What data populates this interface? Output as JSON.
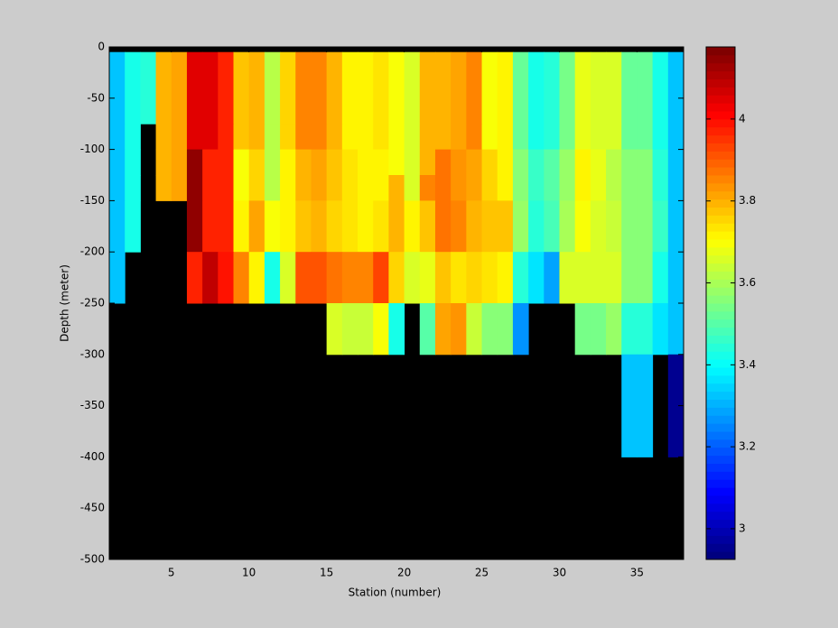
{
  "chart_data": {
    "type": "heatmap",
    "x_label": "Station (number)",
    "y_label": "Depth (meter)",
    "colormap": "jet",
    "missing_color": "#000000",
    "x": [
      1,
      2,
      3,
      4,
      5,
      6,
      7,
      8,
      9,
      10,
      11,
      12,
      13,
      14,
      15,
      16,
      17,
      18,
      19,
      20,
      21,
      22,
      23,
      24,
      25,
      26,
      27,
      28,
      29,
      30,
      31,
      32,
      33,
      34,
      35,
      36,
      37,
      38
    ],
    "y": [
      0,
      -5,
      -75,
      -100,
      -125,
      -150,
      -200,
      -250,
      -300,
      -400,
      -500
    ],
    "z": [
      [
        null,
        null,
        null,
        null,
        null,
        null,
        null,
        null,
        null,
        null,
        null,
        null,
        null,
        null,
        null,
        null,
        null,
        null,
        null,
        null,
        null,
        null,
        null,
        null,
        null,
        null,
        null,
        null,
        null,
        null,
        null,
        null,
        null,
        null,
        null,
        null,
        null
      ],
      [
        3.33,
        3.42,
        3.45,
        3.8,
        3.82,
        4.05,
        4.05,
        3.97,
        3.78,
        3.8,
        3.62,
        3.75,
        3.85,
        3.85,
        3.8,
        3.72,
        3.72,
        3.74,
        3.7,
        3.66,
        3.8,
        3.8,
        3.82,
        3.85,
        3.7,
        3.72,
        3.52,
        3.42,
        3.45,
        3.55,
        3.68,
        3.65,
        3.66,
        3.52,
        3.53,
        3.42,
        3.32
      ],
      [
        3.33,
        3.42,
        null,
        3.8,
        3.82,
        4.05,
        4.05,
        3.97,
        3.78,
        3.8,
        3.62,
        3.75,
        3.85,
        3.85,
        3.8,
        3.72,
        3.72,
        3.74,
        3.7,
        3.66,
        3.8,
        3.8,
        3.82,
        3.85,
        3.7,
        3.72,
        3.52,
        3.42,
        3.45,
        3.55,
        3.68,
        3.65,
        3.66,
        3.52,
        3.53,
        3.42,
        3.32
      ],
      [
        3.33,
        3.42,
        null,
        3.8,
        3.82,
        4.15,
        3.98,
        3.97,
        3.7,
        3.75,
        3.62,
        3.72,
        3.8,
        3.82,
        3.78,
        3.74,
        3.72,
        3.72,
        3.7,
        3.66,
        3.8,
        3.88,
        3.84,
        3.82,
        3.75,
        3.72,
        3.57,
        3.46,
        3.5,
        3.58,
        3.72,
        3.68,
        3.62,
        3.56,
        3.56,
        3.44,
        3.32
      ],
      [
        3.33,
        3.42,
        null,
        3.8,
        3.82,
        4.15,
        3.98,
        3.97,
        3.7,
        3.75,
        3.62,
        3.72,
        3.8,
        3.82,
        3.78,
        3.74,
        3.72,
        3.72,
        3.8,
        3.66,
        3.86,
        3.88,
        3.84,
        3.82,
        3.75,
        3.72,
        3.57,
        3.46,
        3.5,
        3.58,
        3.72,
        3.68,
        3.62,
        3.56,
        3.56,
        3.44,
        3.32
      ],
      [
        3.33,
        3.42,
        null,
        null,
        null,
        4.15,
        3.98,
        3.97,
        3.72,
        3.82,
        3.7,
        3.72,
        3.78,
        3.8,
        3.76,
        3.74,
        3.72,
        3.74,
        3.8,
        3.72,
        3.78,
        3.88,
        3.86,
        3.8,
        3.78,
        3.78,
        3.58,
        3.44,
        3.48,
        3.6,
        3.7,
        3.66,
        3.64,
        3.56,
        3.56,
        3.46,
        3.32
      ],
      [
        3.33,
        null,
        null,
        null,
        null,
        3.98,
        4.08,
        4.0,
        3.85,
        3.72,
        3.42,
        3.65,
        3.92,
        3.92,
        3.88,
        3.86,
        3.86,
        3.94,
        3.75,
        3.66,
        3.68,
        3.78,
        3.74,
        3.76,
        3.74,
        3.72,
        3.45,
        3.36,
        3.28,
        3.66,
        3.66,
        3.66,
        3.66,
        3.56,
        3.56,
        3.42,
        3.32
      ],
      [
        null,
        null,
        null,
        null,
        null,
        null,
        null,
        null,
        null,
        null,
        null,
        null,
        null,
        null,
        3.66,
        3.64,
        3.64,
        3.7,
        3.42,
        null,
        3.5,
        3.82,
        3.84,
        3.64,
        3.56,
        3.57,
        3.27,
        null,
        null,
        null,
        3.54,
        3.55,
        3.58,
        3.44,
        3.44,
        3.36,
        3.32
      ],
      [
        null,
        null,
        null,
        null,
        null,
        null,
        null,
        null,
        null,
        null,
        null,
        null,
        null,
        null,
        null,
        null,
        null,
        null,
        null,
        null,
        null,
        null,
        null,
        null,
        null,
        null,
        null,
        null,
        null,
        null,
        null,
        null,
        null,
        3.32,
        3.32,
        null,
        2.95
      ],
      [
        null,
        null,
        null,
        null,
        null,
        null,
        null,
        null,
        null,
        null,
        null,
        null,
        null,
        null,
        null,
        null,
        null,
        null,
        null,
        null,
        null,
        null,
        null,
        null,
        null,
        null,
        null,
        null,
        null,
        null,
        null,
        null,
        null,
        null,
        null,
        null,
        null
      ]
    ],
    "xlim": [
      1,
      38
    ],
    "xticks": [
      5,
      10,
      15,
      20,
      25,
      30,
      35
    ],
    "ylim": [
      -500,
      0
    ],
    "yticks": [
      0,
      -50,
      -100,
      -150,
      -200,
      -250,
      -300,
      -350,
      -400,
      -450,
      -500
    ],
    "clim": [
      2.925,
      4.176
    ],
    "cticks": [
      3,
      3.2,
      3.4,
      3.6,
      3.8,
      4
    ],
    "colorbar_levels": 64
  }
}
